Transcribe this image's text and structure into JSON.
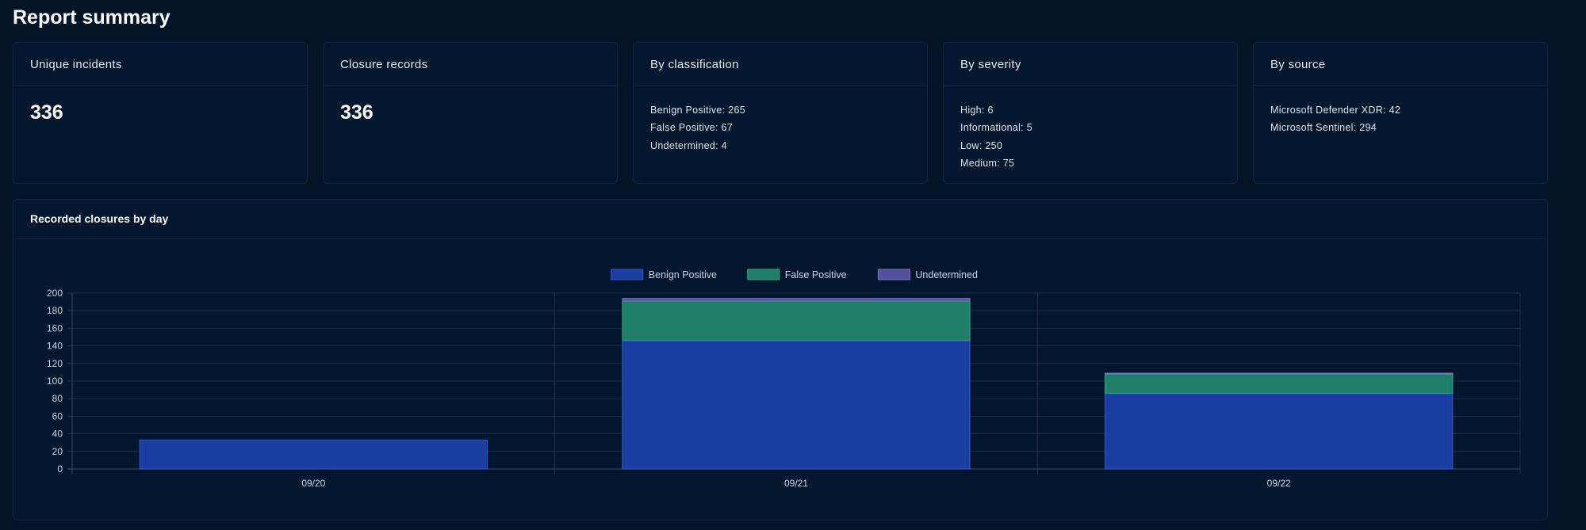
{
  "page": {
    "title": "Report summary"
  },
  "cards": [
    {
      "title": "Unique incidents",
      "value": "336"
    },
    {
      "title": "Closure records",
      "value": "336"
    },
    {
      "title": "By classification",
      "items": [
        "Benign Positive: 265",
        "False Positive: 67",
        "Undetermined: 4"
      ]
    },
    {
      "title": "By severity",
      "items": [
        "High: 6",
        "Informational: 5",
        "Low: 250",
        "Medium: 75"
      ]
    },
    {
      "title": "By source",
      "items": [
        "Microsoft Defender XDR: 42",
        "Microsoft Sentinel: 294"
      ]
    }
  ],
  "chart_panel": {
    "title": "Recorded closures by day"
  },
  "chart_data": {
    "type": "bar",
    "stacked": true,
    "categories": [
      "09/20",
      "09/21",
      "09/22"
    ],
    "series": [
      {
        "name": "Benign Positive",
        "values": [
          33,
          146,
          86
        ],
        "color": "#1b3ea3",
        "border": "#3556c8"
      },
      {
        "name": "False Positive",
        "values": [
          0,
          45,
          22
        ],
        "color": "#1f7f68",
        "border": "#2fa585"
      },
      {
        "name": "Undetermined",
        "values": [
          0,
          3,
          1
        ],
        "color": "#50509b",
        "border": "#7a78c8"
      }
    ],
    "yticks": [
      "0",
      "20",
      "40",
      "60",
      "80",
      "100",
      "120",
      "140",
      "160",
      "180",
      "200"
    ],
    "ylim": [
      0,
      200
    ],
    "xlabel": "",
    "ylabel": "",
    "grid": true,
    "legend": "top-center"
  }
}
